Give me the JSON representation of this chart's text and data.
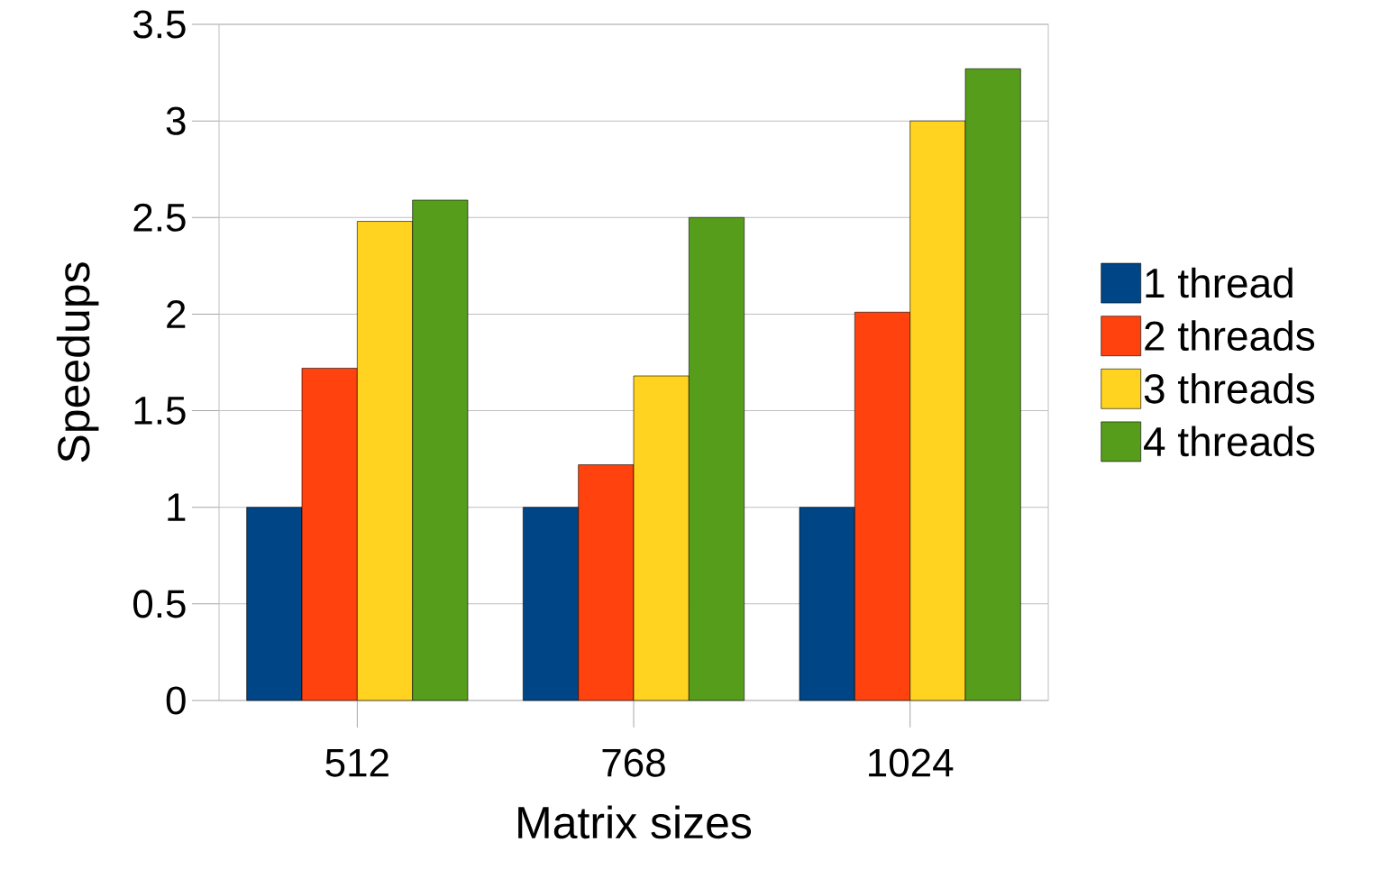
{
  "chart_data": {
    "type": "bar",
    "xlabel": "Matrix sizes",
    "ylabel": "Speedups",
    "categories": [
      "512",
      "768",
      "1024"
    ],
    "series": [
      {
        "name": "1 thread",
        "color": "#004586",
        "values": [
          1,
          1,
          1
        ]
      },
      {
        "name": "2 threads",
        "color": "#ff420e",
        "values": [
          1.72,
          1.22,
          2.01
        ]
      },
      {
        "name": "3 threads",
        "color": "#ffd320",
        "values": [
          2.48,
          1.68,
          3.0
        ]
      },
      {
        "name": "4 threads",
        "color": "#579d1c",
        "values": [
          2.59,
          2.5,
          3.27
        ]
      }
    ],
    "ylim": [
      0,
      3.5
    ],
    "yticks": [
      0,
      0.5,
      1,
      1.5,
      2,
      2.5,
      3,
      3.5
    ],
    "grid": "y",
    "legend": "right"
  }
}
